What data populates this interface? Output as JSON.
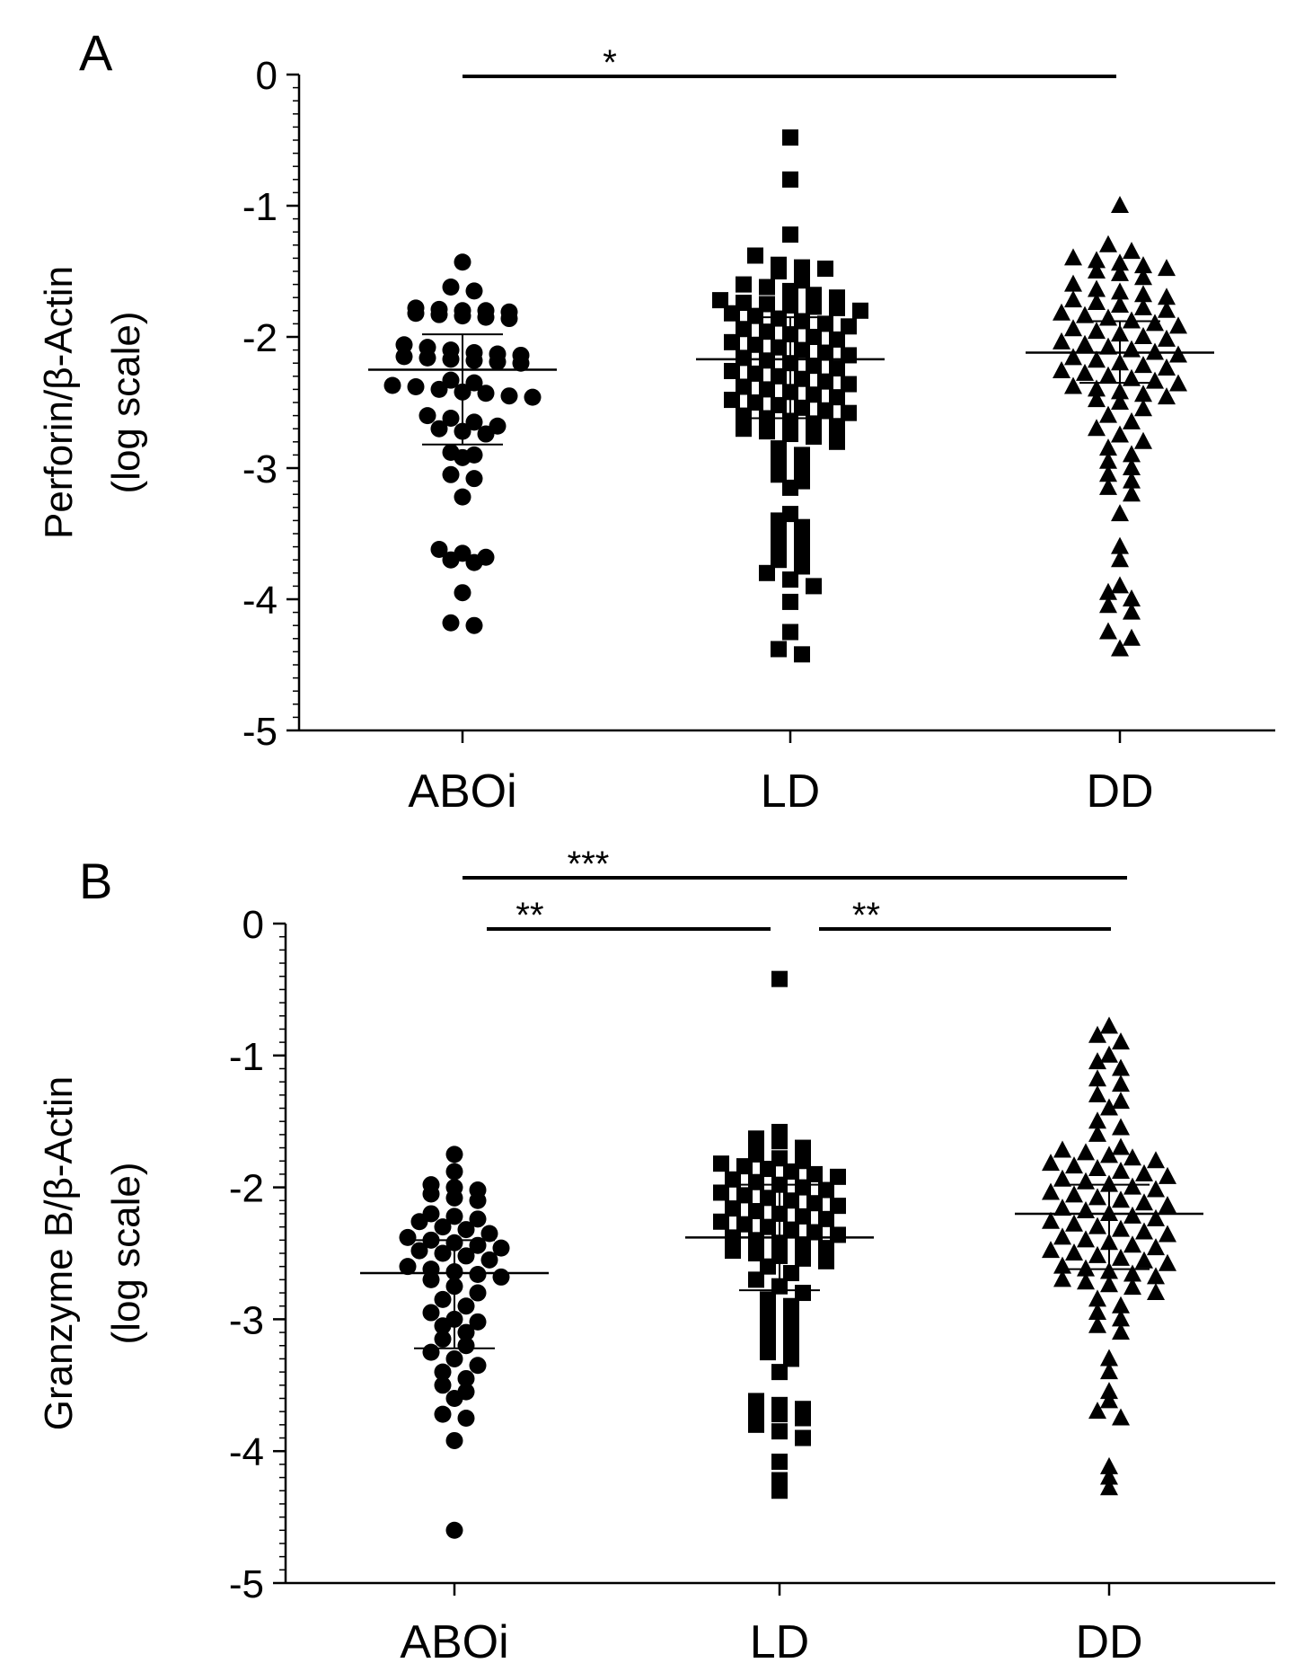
{
  "chart_data": [
    {
      "panel": "A",
      "type": "scatter",
      "subtype": "dot-plot",
      "ylabel_line1": "Perforin/β-Actin",
      "ylabel_line2": "(log scale)",
      "categories": [
        "ABOi",
        "LD",
        "DD"
      ],
      "ylim": [
        -5,
        0
      ],
      "yticks": [
        0,
        -1,
        -2,
        -3,
        -4,
        -5
      ],
      "ytick_labels": [
        "0",
        "-1",
        "-2",
        "-3",
        "-4",
        "-5"
      ],
      "markers": [
        "circle",
        "square",
        "triangle"
      ],
      "series": [
        {
          "name": "ABOi",
          "marker": "circle",
          "median": -2.25,
          "q1": -2.82,
          "q3": -1.98,
          "values": [
            -1.43,
            -1.62,
            -1.65,
            -1.78,
            -1.79,
            -1.8,
            -1.8,
            -1.81,
            -1.82,
            -1.83,
            -1.84,
            -1.85,
            -1.86,
            -2.06,
            -2.08,
            -2.1,
            -2.12,
            -2.13,
            -2.14,
            -2.15,
            -2.16,
            -2.17,
            -2.18,
            -2.19,
            -2.2,
            -2.33,
            -2.35,
            -2.37,
            -2.38,
            -2.4,
            -2.42,
            -2.43,
            -2.45,
            -2.46,
            -2.6,
            -2.62,
            -2.65,
            -2.68,
            -2.7,
            -2.72,
            -2.74,
            -2.88,
            -2.9,
            -2.92,
            -3.05,
            -3.08,
            -3.22,
            -3.62,
            -3.65,
            -3.68,
            -3.7,
            -3.72,
            -3.95,
            -4.18,
            -4.2
          ]
        },
        {
          "name": "LD",
          "marker": "square",
          "median": -2.17,
          "q1": -2.62,
          "q3": -1.85,
          "values": [
            -0.48,
            -0.8,
            -1.22,
            -1.38,
            -1.45,
            -1.47,
            -1.48,
            -1.5,
            -1.57,
            -1.6,
            -1.62,
            -1.65,
            -1.68,
            -1.7,
            -1.72,
            -1.74,
            -1.75,
            -1.76,
            -1.77,
            -1.78,
            -1.8,
            -1.82,
            -1.84,
            -1.86,
            -1.88,
            -1.9,
            -1.92,
            -1.94,
            -1.96,
            -1.98,
            -2.0,
            -2.02,
            -2.04,
            -2.06,
            -2.08,
            -2.1,
            -2.12,
            -2.14,
            -2.16,
            -2.18,
            -2.2,
            -2.22,
            -2.24,
            -2.26,
            -2.28,
            -2.3,
            -2.32,
            -2.34,
            -2.36,
            -2.38,
            -2.4,
            -2.42,
            -2.44,
            -2.46,
            -2.48,
            -2.5,
            -2.52,
            -2.54,
            -2.56,
            -2.58,
            -2.6,
            -2.62,
            -2.64,
            -2.66,
            -2.68,
            -2.7,
            -2.72,
            -2.74,
            -2.76,
            -2.8,
            -2.85,
            -2.9,
            -2.95,
            -3.0,
            -3.05,
            -3.1,
            -3.15,
            -3.35,
            -3.4,
            -3.45,
            -3.5,
            -3.55,
            -3.6,
            -3.65,
            -3.7,
            -3.75,
            -3.8,
            -3.85,
            -3.9,
            -4.02,
            -4.25,
            -4.38,
            -4.42
          ]
        },
        {
          "name": "DD",
          "marker": "triangle",
          "median": -2.12,
          "q1": -2.35,
          "q3": -1.88,
          "values": [
            -1.0,
            -1.3,
            -1.35,
            -1.4,
            -1.42,
            -1.44,
            -1.46,
            -1.48,
            -1.5,
            -1.52,
            -1.55,
            -1.6,
            -1.64,
            -1.66,
            -1.68,
            -1.7,
            -1.72,
            -1.74,
            -1.76,
            -1.78,
            -1.8,
            -1.82,
            -1.84,
            -1.86,
            -1.88,
            -1.9,
            -1.92,
            -1.94,
            -1.96,
            -1.98,
            -2.0,
            -2.02,
            -2.04,
            -2.06,
            -2.08,
            -2.1,
            -2.12,
            -2.14,
            -2.16,
            -2.18,
            -2.2,
            -2.22,
            -2.24,
            -2.26,
            -2.28,
            -2.3,
            -2.32,
            -2.34,
            -2.36,
            -2.38,
            -2.4,
            -2.42,
            -2.44,
            -2.46,
            -2.48,
            -2.5,
            -2.55,
            -2.6,
            -2.65,
            -2.7,
            -2.75,
            -2.8,
            -2.85,
            -2.9,
            -2.95,
            -3.0,
            -3.05,
            -3.1,
            -3.15,
            -3.2,
            -3.35,
            -3.6,
            -3.7,
            -3.9,
            -3.95,
            -4.0,
            -4.05,
            -4.1,
            -4.25,
            -4.3,
            -4.38
          ]
        }
      ],
      "significance": [
        {
          "from": "ABOi",
          "to": "DD",
          "label": "*"
        }
      ]
    },
    {
      "panel": "B",
      "type": "scatter",
      "subtype": "dot-plot",
      "ylabel_line1": "Granzyme B/β-Actin",
      "ylabel_line2": "(log scale)",
      "categories": [
        "ABOi",
        "LD",
        "DD"
      ],
      "ylim": [
        -5,
        0
      ],
      "yticks": [
        0,
        -1,
        -2,
        -3,
        -4,
        -5
      ],
      "ytick_labels": [
        "0",
        "-1",
        "-2",
        "-3",
        "-4",
        "-5"
      ],
      "markers": [
        "circle",
        "square",
        "triangle"
      ],
      "series": [
        {
          "name": "ABOi",
          "marker": "circle",
          "median": -2.65,
          "q1": -3.22,
          "q3": -2.4,
          "values": [
            -1.75,
            -1.88,
            -1.98,
            -2.0,
            -2.02,
            -2.05,
            -2.08,
            -2.1,
            -2.2,
            -2.22,
            -2.24,
            -2.26,
            -2.3,
            -2.32,
            -2.35,
            -2.38,
            -2.4,
            -2.42,
            -2.44,
            -2.46,
            -2.48,
            -2.5,
            -2.52,
            -2.55,
            -2.6,
            -2.62,
            -2.64,
            -2.66,
            -2.68,
            -2.7,
            -2.75,
            -2.8,
            -2.85,
            -2.9,
            -2.95,
            -3.0,
            -3.02,
            -3.05,
            -3.1,
            -3.15,
            -3.2,
            -3.25,
            -3.3,
            -3.35,
            -3.4,
            -3.45,
            -3.5,
            -3.55,
            -3.6,
            -3.72,
            -3.75,
            -3.92,
            -4.6
          ]
        },
        {
          "name": "LD",
          "marker": "square",
          "median": -2.38,
          "q1": -2.78,
          "q3": -1.98,
          "values": [
            -0.42,
            -1.58,
            -1.63,
            -1.65,
            -1.7,
            -1.75,
            -1.78,
            -1.8,
            -1.82,
            -1.84,
            -1.86,
            -1.88,
            -1.9,
            -1.92,
            -1.94,
            -1.96,
            -1.98,
            -2.0,
            -2.02,
            -2.04,
            -2.06,
            -2.08,
            -2.1,
            -2.12,
            -2.14,
            -2.16,
            -2.18,
            -2.2,
            -2.22,
            -2.24,
            -2.26,
            -2.28,
            -2.3,
            -2.32,
            -2.34,
            -2.36,
            -2.38,
            -2.4,
            -2.42,
            -2.44,
            -2.46,
            -2.48,
            -2.5,
            -2.52,
            -2.54,
            -2.56,
            -2.6,
            -2.65,
            -2.7,
            -2.75,
            -2.8,
            -2.85,
            -2.9,
            -2.95,
            -3.0,
            -3.05,
            -3.1,
            -3.15,
            -3.2,
            -3.25,
            -3.3,
            -3.4,
            -3.62,
            -3.65,
            -3.68,
            -3.7,
            -3.72,
            -3.75,
            -3.8,
            -3.85,
            -3.9,
            -4.08,
            -4.22,
            -4.3
          ]
        },
        {
          "name": "DD",
          "marker": "triangle",
          "median": -2.2,
          "q1": -2.62,
          "q3": -1.98,
          "values": [
            -0.78,
            -0.85,
            -0.9,
            -1.0,
            -1.05,
            -1.1,
            -1.18,
            -1.22,
            -1.3,
            -1.35,
            -1.4,
            -1.5,
            -1.55,
            -1.6,
            -1.7,
            -1.72,
            -1.74,
            -1.76,
            -1.78,
            -1.8,
            -1.82,
            -1.84,
            -1.86,
            -1.88,
            -1.9,
            -1.92,
            -1.94,
            -1.96,
            -1.98,
            -2.0,
            -2.02,
            -2.04,
            -2.06,
            -2.08,
            -2.1,
            -2.12,
            -2.14,
            -2.16,
            -2.18,
            -2.2,
            -2.22,
            -2.24,
            -2.26,
            -2.28,
            -2.3,
            -2.32,
            -2.34,
            -2.36,
            -2.38,
            -2.4,
            -2.42,
            -2.44,
            -2.46,
            -2.48,
            -2.5,
            -2.52,
            -2.54,
            -2.56,
            -2.58,
            -2.6,
            -2.62,
            -2.64,
            -2.66,
            -2.68,
            -2.7,
            -2.72,
            -2.74,
            -2.76,
            -2.8,
            -2.85,
            -2.9,
            -2.95,
            -3.0,
            -3.05,
            -3.1,
            -3.3,
            -3.4,
            -3.55,
            -3.62,
            -3.7,
            -3.75,
            -4.12,
            -4.2,
            -4.28
          ]
        }
      ],
      "significance": [
        {
          "from": "ABOi",
          "to": "DD",
          "label": "***"
        },
        {
          "from": "ABOi",
          "to": "LD",
          "label": "**"
        },
        {
          "from": "LD",
          "to": "DD",
          "label": "**"
        }
      ]
    }
  ]
}
